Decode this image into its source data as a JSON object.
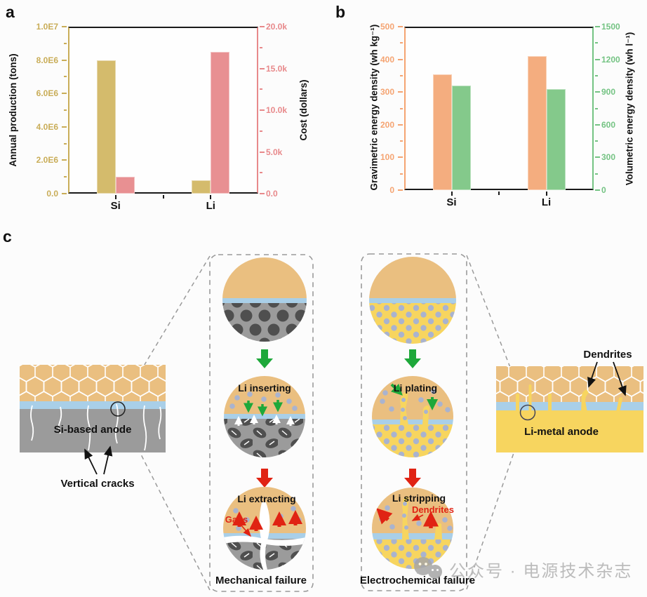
{
  "figure": {
    "panel_c_label": "c"
  },
  "chart_data": [
    {
      "type": "bar",
      "panel_label": "a",
      "categories": [
        "Si",
        "Li"
      ],
      "left_axis": {
        "title": "Annual production (tons)",
        "color": "#c9ad58",
        "tick_labels": [
          "0.0",
          "2.0E6",
          "4.0E6",
          "6.0E6",
          "8.0E6",
          "1.0E7"
        ],
        "min": 0,
        "max": 10000000
      },
      "right_axis": {
        "title": "Cost (dollars)",
        "color": "#e8898b",
        "tick_labels": [
          "0.0",
          "5.0k",
          "10.0k",
          "15.0k",
          "20.0k"
        ],
        "min": 0,
        "max": 20000
      },
      "series": [
        {
          "name": "Annual production (tons)",
          "axis": "left",
          "color": "#d4bb6c",
          "values": [
            8000000,
            800000
          ]
        },
        {
          "name": "Cost (dollars)",
          "axis": "right",
          "color": "#e89092",
          "values": [
            2000,
            17000
          ]
        }
      ],
      "legend": false,
      "grid": false
    },
    {
      "type": "bar",
      "panel_label": "b",
      "categories": [
        "Si",
        "Li"
      ],
      "left_axis": {
        "title": "Gravimetric energy density (wh kg⁻¹)",
        "color": "#f5a472",
        "tick_labels": [
          "0",
          "100",
          "200",
          "300",
          "400",
          "500"
        ],
        "min": 0,
        "max": 500
      },
      "right_axis": {
        "title": "Volumetric energy density (wh l⁻¹)",
        "color": "#74c383",
        "tick_labels": [
          "0",
          "300",
          "600",
          "900",
          "1200",
          "1500"
        ],
        "min": 0,
        "max": 1500
      },
      "series": [
        {
          "name": "Gravimetric energy density (wh kg⁻¹)",
          "axis": "left",
          "color": "#f4ad7f",
          "values": [
            355,
            410
          ]
        },
        {
          "name": "Volumetric energy density (wh l⁻¹)",
          "axis": "right",
          "color": "#84c98b",
          "values": [
            960,
            925
          ]
        }
      ],
      "legend": false,
      "grid": false
    }
  ],
  "diagram": {
    "si_panel": {
      "anode_label": "Si-based anode",
      "callout": "Vertical cracks"
    },
    "li_panel": {
      "anode_label": "Li-metal anode",
      "callout": "Dendrites"
    },
    "mechanical_box": {
      "step1_label": "Li inserting",
      "step2_label": "Li extracting",
      "gap_label": "Gaps",
      "caption": "Mechanical failure"
    },
    "electrochemical_box": {
      "step1_label": "Li plating",
      "step2_label": "Li stripping",
      "dendrite_label": "Dendrites",
      "caption": "Electrochemical failure"
    },
    "colors": {
      "cathode_tan": "#eabf80",
      "separator_blue": "#a9cfe8",
      "si_gray": "#9b9b9b",
      "li_yellow": "#f7d55f",
      "li_ion": "#a9b3cf",
      "si_particle": "#4f4f4f",
      "green_arrow": "#1ea83a",
      "red_arrow": "#e02313",
      "dashed_line": "#9a9a9a"
    }
  },
  "watermark": {
    "text": "公众号 · 电源技术杂志",
    "color": "#bcbcbc",
    "icon": "wechat-icon"
  }
}
